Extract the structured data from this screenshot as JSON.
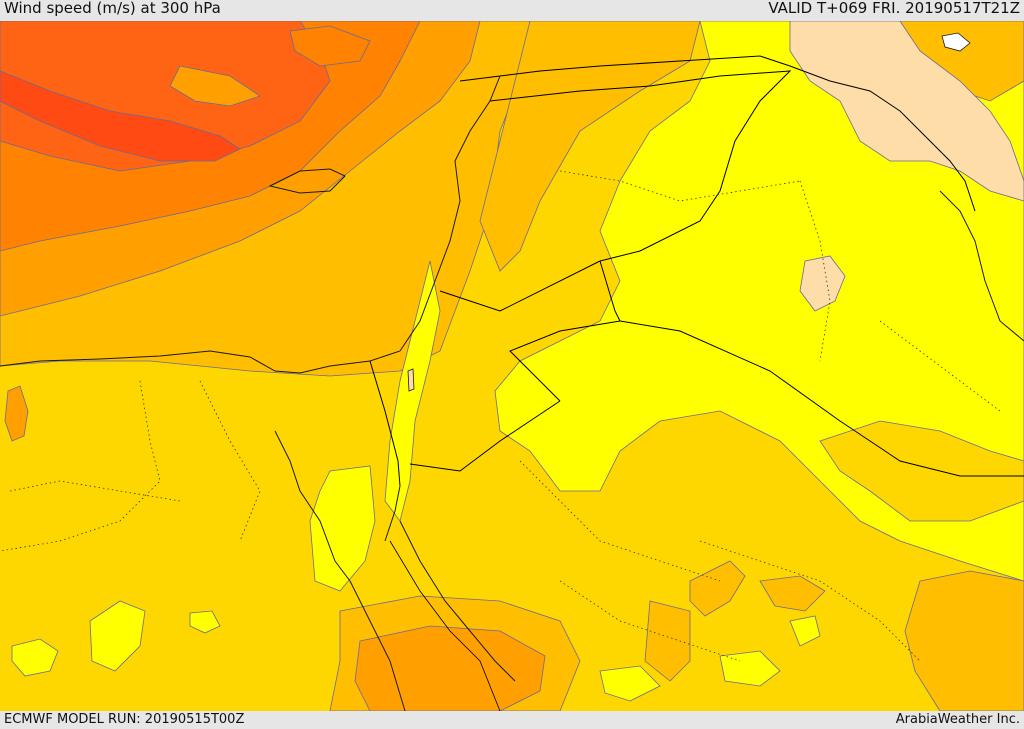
{
  "header": {
    "title": "Wind speed (m/s) at 300 hPa",
    "valid": "VALID T+069 FRI. 20190517T21Z"
  },
  "footer": {
    "model_run": "ECMWF MODEL RUN: 20190515T00Z",
    "credit": "ArabiaWeather Inc."
  },
  "colors": {
    "c_15_20": "#ffff00",
    "c_20_25": "#ffd700",
    "c_25_30": "#ffbe00",
    "c_30_35": "#ffa000",
    "c_35_40": "#ff8200",
    "c_40_45": "#ff6414",
    "c_45_50": "#ff4a14",
    "c_10_15": "#ffdda8",
    "contour": "#6a6a9a",
    "coast": "#1a1a1a",
    "border": "#000000"
  }
}
